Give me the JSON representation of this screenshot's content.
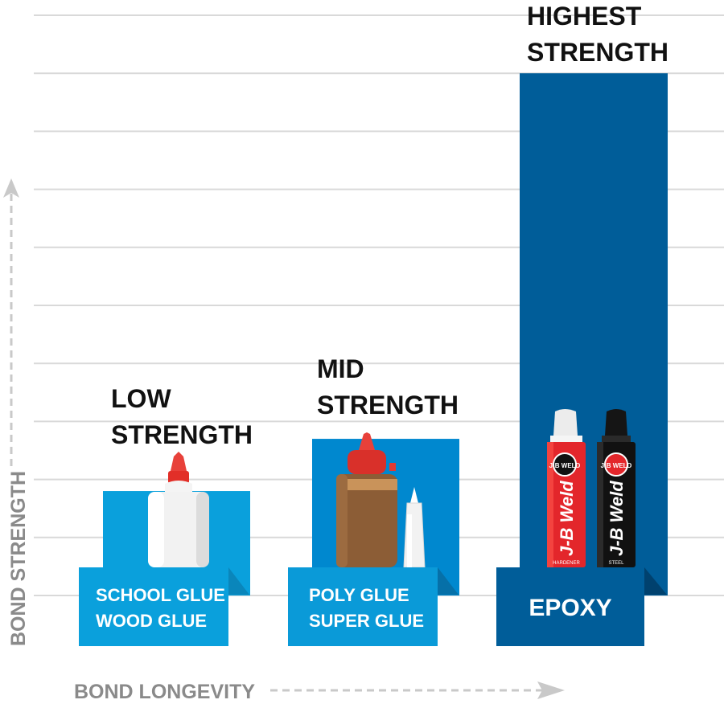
{
  "chart_data": {
    "type": "bar",
    "categories": [
      "LOW STRENGTH",
      "MID STRENGTH",
      "HIGHEST STRENGTH"
    ],
    "values": [
      1.8,
      2.7,
      9.0
    ],
    "ylim": [
      0,
      10
    ],
    "xlabel": "BOND LONGEVITY",
    "ylabel": "BOND STRENGTH",
    "grid": true,
    "bars": [
      {
        "strength_lines": [
          "LOW",
          "STRENGTH"
        ],
        "label_lines": [
          "SCHOOL GLUE",
          "WOOD GLUE"
        ],
        "color": "#0aa0dc",
        "label_color": "#0aa0dc"
      },
      {
        "strength_lines": [
          "MID",
          "STRENGTH"
        ],
        "label_lines": [
          "POLY GLUE",
          "SUPER GLUE"
        ],
        "color": "#0088cf",
        "label_color": "#0a9ad8"
      },
      {
        "strength_lines": [
          "HIGHEST",
          "STRENGTH"
        ],
        "label_lines": [
          "EPOXY"
        ],
        "color": "#005d99",
        "label_color": "#005d99"
      }
    ]
  },
  "products": {
    "school_glue_icon": "white-glue-bottle-icon",
    "poly_glue_icon": "brown-glue-bottle-icon",
    "super_glue_icon": "super-glue-tube-icon",
    "epoxy_icon": "jb-weld-tubes-icon",
    "hardener_tube": {
      "brand": "J-B Weld",
      "badge": "J·B WELD",
      "caption": "HARDENER",
      "color": "#e3262b"
    },
    "steel_tube": {
      "brand": "J-B Weld",
      "badge": "J·B WELD",
      "caption": "STEEL",
      "color": "#111111"
    }
  },
  "colors": {
    "grid": "#d9d9d9",
    "axis": "#9b9b9b",
    "label_text": "#ffffff",
    "strength_text": "#111111"
  }
}
